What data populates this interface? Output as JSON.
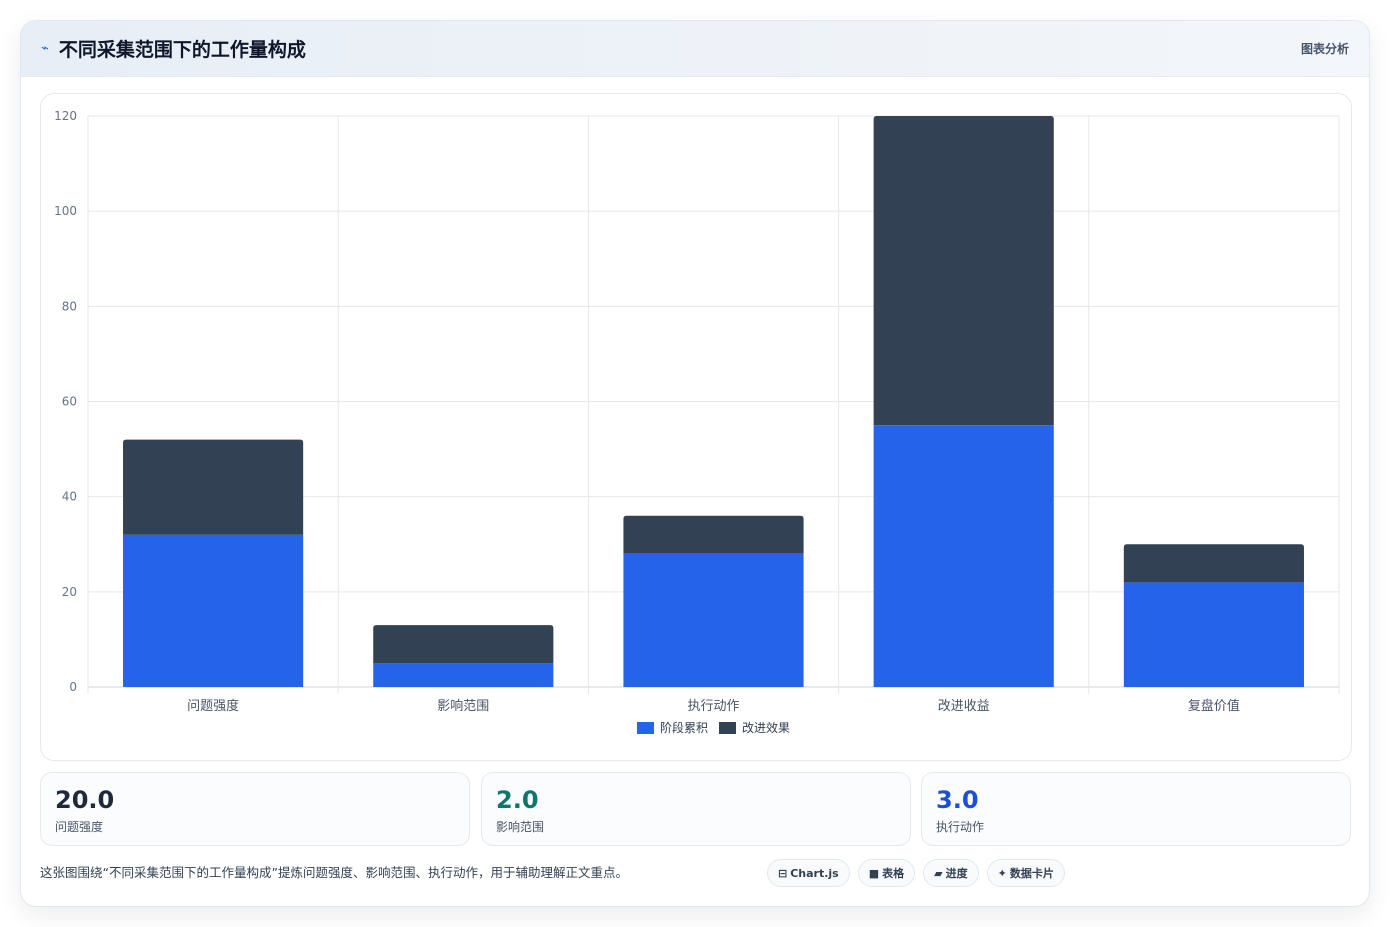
{
  "header": {
    "icon": "⌁",
    "title": "不同采集范围下的工作量构成",
    "tag": "图表分析"
  },
  "chart_data": {
    "type": "bar",
    "stacked": true,
    "categories": [
      "问题强度",
      "影响范围",
      "执行动作",
      "改进收益",
      "复盘价值"
    ],
    "series": [
      {
        "name": "阶段累积",
        "values": [
          32,
          5,
          28,
          55,
          22
        ],
        "color": "#2563eb"
      },
      {
        "name": "改进效果",
        "values": [
          20,
          8,
          8,
          65,
          8
        ],
        "color": "#334155"
      }
    ],
    "ylim": [
      0,
      120
    ],
    "yticks": [
      0,
      20,
      40,
      60,
      80,
      100,
      120
    ],
    "grid": true,
    "legend": "bottom"
  },
  "stats": [
    {
      "value": "20.0",
      "label": "问题强度",
      "color": "#1e293b"
    },
    {
      "value": "2.0",
      "label": "影响范围",
      "color": "#0f766e"
    },
    {
      "value": "3.0",
      "label": "执行动作",
      "color": "#1d4ed8"
    }
  ],
  "footer": {
    "note": "这张图围绕“不同采集范围下的工作量构成”提炼问题强度、影响范围、执行动作，用于辅助理解正文重点。",
    "chips": [
      {
        "icon": "⊟",
        "label": "Chart.js"
      },
      {
        "icon": "■",
        "label": "表格"
      },
      {
        "icon": "▰",
        "label": "进度"
      },
      {
        "icon": "✦",
        "label": "数据卡片"
      }
    ]
  }
}
